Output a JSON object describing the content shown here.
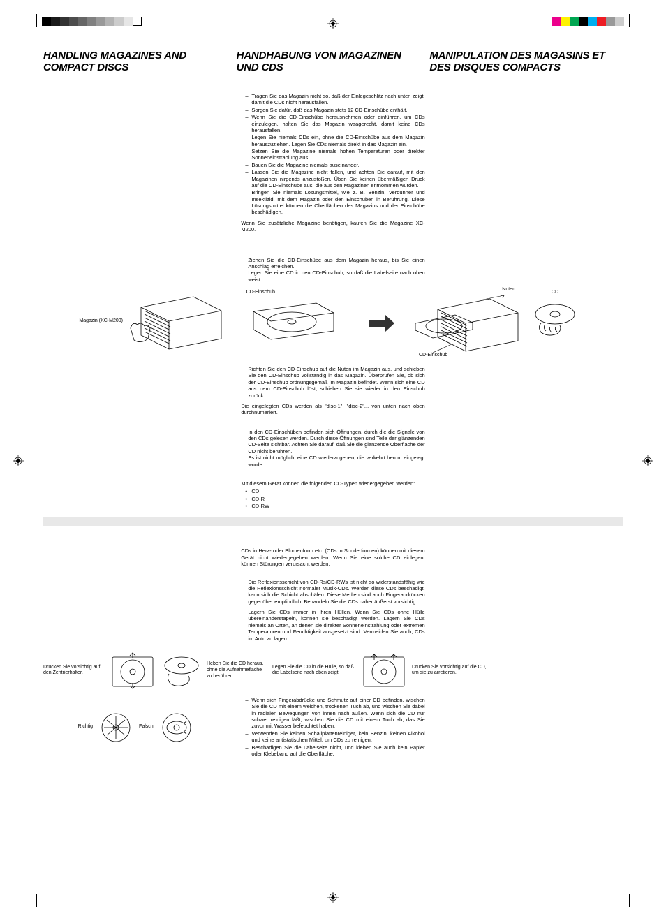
{
  "headings": {
    "en": "HANDLING MAGAZINES AND COMPACT DISCS",
    "de": "HANDHABUNG VON MAGAZINEN UND CDS",
    "fr": "MANIPULATION DES MAGASINS ET DES DISQUES COMPACTS"
  },
  "de": {
    "bullets1": [
      "Tragen Sie das Magazin nicht so, daß der Einlegeschlitz nach unten zeigt, damit die CDs nicht herausfallen.",
      "Sorgen Sie dafür, daß das Magazin stets 12 CD-Einschübe enthält.",
      "Wenn Sie die CD-Einschübe herausnehmen oder einführen, um CDs einzulegen, halten Sie das Magazin waagerecht, damit keine CDs herausfallen.",
      "Legen Sie niemals CDs ein, ohne die CD-Einschübe aus dem Magazin herauszuziehen. Legen Sie CDs niemals direkt in das Magazin ein.",
      "Setzen Sie die Magazine niemals hohen Temperaturen oder direkter Sonneneinstrahlung aus.",
      "Bauen Sie die Magazine niemals auseinander.",
      "Lassen Sie die Magazine nicht fallen, und achten Sie darauf, mit den Magazinen nirgends anzustoßen. Üben Sie keinen übermäßigen Druck auf die CD-Einschübe aus, die aus den Magazinen entnommen wurden.",
      "Bringen Sie niemals Lösungsmittel, wie z. B. Benzin, Verdünner und Insektizid, mit dem Magazin oder den Einschüben in Berührung. Diese Lösungsmittel können die Oberflächen des Magazins und der Einschübe beschädigen."
    ],
    "extra_mag": "Wenn Sie zusätzliche Magazine benötigen, kaufen Sie die Magazine XC-M200.",
    "step_pull": "Ziehen Sie die CD-Einschübe aus dem Magazin heraus, bis Sie einen Anschlag erreichen.\nLegen Sie eine CD in den CD-Einschub, so daß die Labelseite nach oben weist.",
    "label_mag": "Magazin (XC-M200)",
    "label_tray": "CD-Einschub",
    "label_tray2": "CD-Einschub",
    "label_groove": "Nuten",
    "label_cd": "CD",
    "step_insert": "Richten Sie den CD-Einschub auf die Nuten im Magazin aus, und schieben Sie den CD-Einschub vollständig in das Magazin. Überprüfen Sie, ob sich der CD-Einschub ordnungsgemäß im Magazin befindet. Wenn sich eine CD aus dem CD-Einschub löst, schieben Sie sie wieder in den Einschub zurück.",
    "numbered": "Die eingelegten CDs werden als \"disc-1\", \"disc-2\"... von unten nach oben durchnumeriert.",
    "signal_holes": "In den CD-Einschüben befinden sich Öffnungen, durch die die Signale von den CDs gelesen werden. Durch diese Öffnungen sind Teile der glänzenden CD-Seite sichtbar. Achten Sie darauf, daß Sie die glänzende Oberfläche der CD nicht berühren.\nEs ist nicht möglich, eine CD wiederzugeben, die verkehrt herum eingelegt wurde.",
    "cd_types_intro": "Mit diesem Gerät können die folgenden CD-Typen wiedergegeben werden:",
    "cd_types": [
      "CD",
      "CD-R",
      "CD-RW"
    ],
    "shape_warn": "CDs in Herz- oder Blumenform etc. (CDs in Sonderformen) können mit diesem Gerät nicht wiedergegeben werden. Wenn Sie eine solche CD einlegen, können Störungen verursacht werden.",
    "reflection": "Die Reflexionsschicht von CD-Rs/CD-RWs ist nicht so widerstandsfähig wie die Reflexionsschicht normaler Musik-CDs. Werden diese CDs beschädigt, kann sich die Schicht abschälen. Diese Medien sind auch Fingerabdrücken gegenüber empfindlich. Behandeln Sie die CDs daher äußerst vorsichtig.",
    "storage": "Lagern Sie CDs immer in ihren Hüllen. Wenn Sie CDs ohne Hülle übereinanderstapeln, können sie beschädigt werden. Lagern Sie CDs niemals an Orten, an denen sie direkter Sonneneinstrahlung oder extremen Temperaturen und Feuchtigkeit ausgesetzt sind. Vermeiden Sie auch, CDs im Auto zu lagern.",
    "cap_press_center": "Drücken Sie vorsichtig auf den Zentrierhalter.",
    "cap_lift": "Heben Sie die CD heraus, ohne die Aufnahmefläche zu berühren.",
    "cap_place_case": "Legen Sie die CD in die Hülle, so daß die Labelseite nach oben zeigt.",
    "cap_press_cd": "Drücken Sie vorsichtig auf die CD, um sie zu arretieren.",
    "cleaning": [
      "Wenn sich Fingerabdrücke und Schmutz auf einer CD befinden, wischen Sie die CD mit einem weichen, trockenen Tuch ab, und wischen Sie dabei in radialen Bewegungen von innen nach außen. Wenn sich die CD nur schwer reinigen läßt, wischen Sie die CD mit einem Tuch ab, das Sie zuvor mit Wasser befeuchtet haben.",
      "Verwenden Sie keinen Schallplattenreiniger, kein Benzin, keinen Alkohol und keine antistatischen Mittel, um CDs zu reinigen.",
      "Beschädigen Sie die Labelseite nicht, und kleben Sie auch kein Papier oder Klebeband auf die Oberfläche."
    ],
    "correct": "Richtig",
    "wrong": "Falsch"
  },
  "colorbars": {
    "left": [
      "#000000",
      "#1a1a1a",
      "#333333",
      "#4d4d4d",
      "#666666",
      "#808080",
      "#999999",
      "#b3b3b3",
      "#cccccc",
      "#e6e6e6",
      "#ffffff"
    ],
    "right": [
      "#ec008c",
      "#fff200",
      "#00a651",
      "#000000",
      "#00aeef",
      "#ed1c24",
      "#999999",
      "#cccccc"
    ]
  }
}
